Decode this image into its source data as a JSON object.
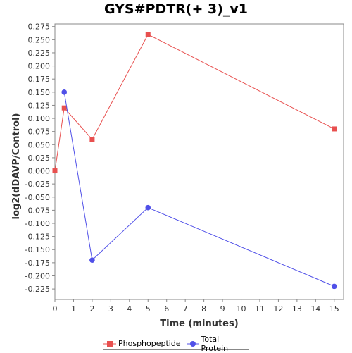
{
  "chart_data": {
    "type": "line",
    "title": "GYS#PDTR(+ 3)_v1",
    "xlabel": "Time (minutes)",
    "ylabel": "log2(dDAVP/Control)",
    "xlim": [
      0,
      15.5
    ],
    "ylim": [
      -0.245,
      0.28
    ],
    "xticks": [
      0,
      1,
      2,
      3,
      4,
      5,
      6,
      7,
      8,
      9,
      10,
      11,
      12,
      13,
      14,
      15
    ],
    "yticks": [
      0.275,
      0.25,
      0.225,
      0.2,
      0.175,
      0.15,
      0.125,
      0.1,
      0.075,
      0.05,
      0.025,
      0.0,
      -0.025,
      -0.05,
      -0.075,
      -0.1,
      -0.125,
      -0.15,
      -0.175,
      -0.2,
      -0.225
    ],
    "ytick_labels": [
      "0.275",
      "0.250",
      "0.225",
      "0.200",
      "0.175",
      "0.150",
      "0.125",
      "0.100",
      "0.075",
      "0.050",
      "0.025",
      "0.000",
      "-0.025",
      "-0.050",
      "-0.075",
      "-0.100",
      "-0.125",
      "-0.150",
      "-0.175",
      "-0.200",
      "-0.225"
    ],
    "series": [
      {
        "name": "Phosphopeptide",
        "color": "#e8504f",
        "marker": "square",
        "x": [
          0,
          0.5,
          2,
          5,
          15
        ],
        "y": [
          0.0,
          0.12,
          0.06,
          0.26,
          0.08
        ]
      },
      {
        "name": "Total Protein",
        "color": "#5050e8",
        "marker": "circle",
        "x": [
          0.5,
          2,
          5,
          15
        ],
        "y": [
          0.15,
          -0.17,
          -0.07,
          -0.22
        ]
      }
    ],
    "zero_line": true,
    "grid": false,
    "legend_position": "bottom-center"
  }
}
